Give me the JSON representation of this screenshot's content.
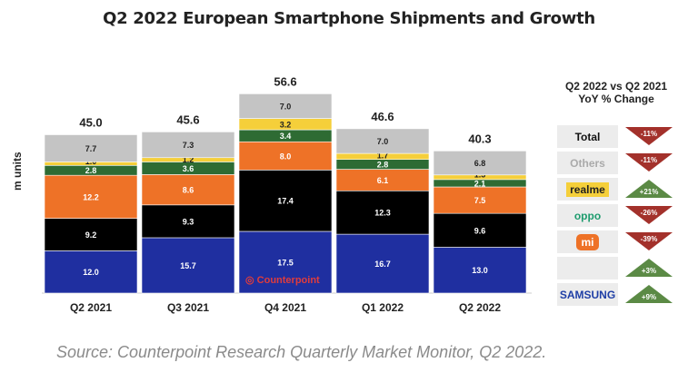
{
  "chart_data": {
    "type": "bar",
    "stacked": true,
    "title": "Q2 2022 European Smartphone Shipments and Growth",
    "ylabel": "m units",
    "categories": [
      "Q2 2021",
      "Q3 2021",
      "Q4 2021",
      "Q1 2022",
      "Q2 2022"
    ],
    "totals": [
      "45.0",
      "45.6",
      "56.6",
      "46.6",
      "40.3"
    ],
    "series": [
      {
        "key": "samsung",
        "color": "#1f2fa0",
        "text": "#fff",
        "values": [
          12.0,
          15.7,
          17.5,
          16.7,
          13.0
        ]
      },
      {
        "key": "apple",
        "color": "#000000",
        "text": "#fff",
        "values": [
          9.2,
          9.3,
          17.4,
          12.3,
          9.6
        ]
      },
      {
        "key": "xiaomi",
        "color": "#ee7227",
        "text": "#fff",
        "values": [
          12.2,
          8.6,
          8.0,
          6.1,
          7.5
        ]
      },
      {
        "key": "oppo",
        "color": "#2e6b33",
        "text": "#fff",
        "values": [
          2.8,
          3.6,
          3.4,
          2.8,
          2.1
        ]
      },
      {
        "key": "realme",
        "color": "#f5cf3a",
        "text": "#222",
        "values": [
          1.0,
          1.2,
          3.2,
          1.7,
          1.3
        ]
      },
      {
        "key": "others",
        "color": "#c4c4c4",
        "text": "#222",
        "values": [
          7.7,
          7.3,
          7.0,
          7.0,
          6.8
        ]
      }
    ],
    "ylim": [
      0,
      56.6
    ],
    "grid": false,
    "legend": "none"
  },
  "logo": "Counterpoint",
  "panel": {
    "title_line1": "Q2 2022 vs Q2 2021",
    "title_line2": "YoY % Change",
    "rows": [
      {
        "label": "Total",
        "change": "-11%",
        "direction": "down",
        "label_color": "#111"
      },
      {
        "label": "Others",
        "change": "-11%",
        "direction": "down",
        "label_color": "#aaa"
      },
      {
        "label": "realme",
        "change": "+21%",
        "direction": "up",
        "label_color": "#222"
      },
      {
        "label": "oppo",
        "change": "-26%",
        "direction": "down",
        "label_color": "#1e9c6e"
      },
      {
        "label": "mi",
        "change": "-39%",
        "direction": "down",
        "label_color": "#fff"
      },
      {
        "label": "",
        "icon": "apple-icon",
        "change": "+3%",
        "direction": "up"
      },
      {
        "label": "SAMSUNG",
        "change": "+9%",
        "direction": "up",
        "label_color": "#1f3fa6"
      }
    ],
    "colors": {
      "down": "#a3312b",
      "up": "#5b8a45"
    }
  },
  "source": "Source:  Counterpoint Research Quarterly Market Monitor, Q2 2022."
}
